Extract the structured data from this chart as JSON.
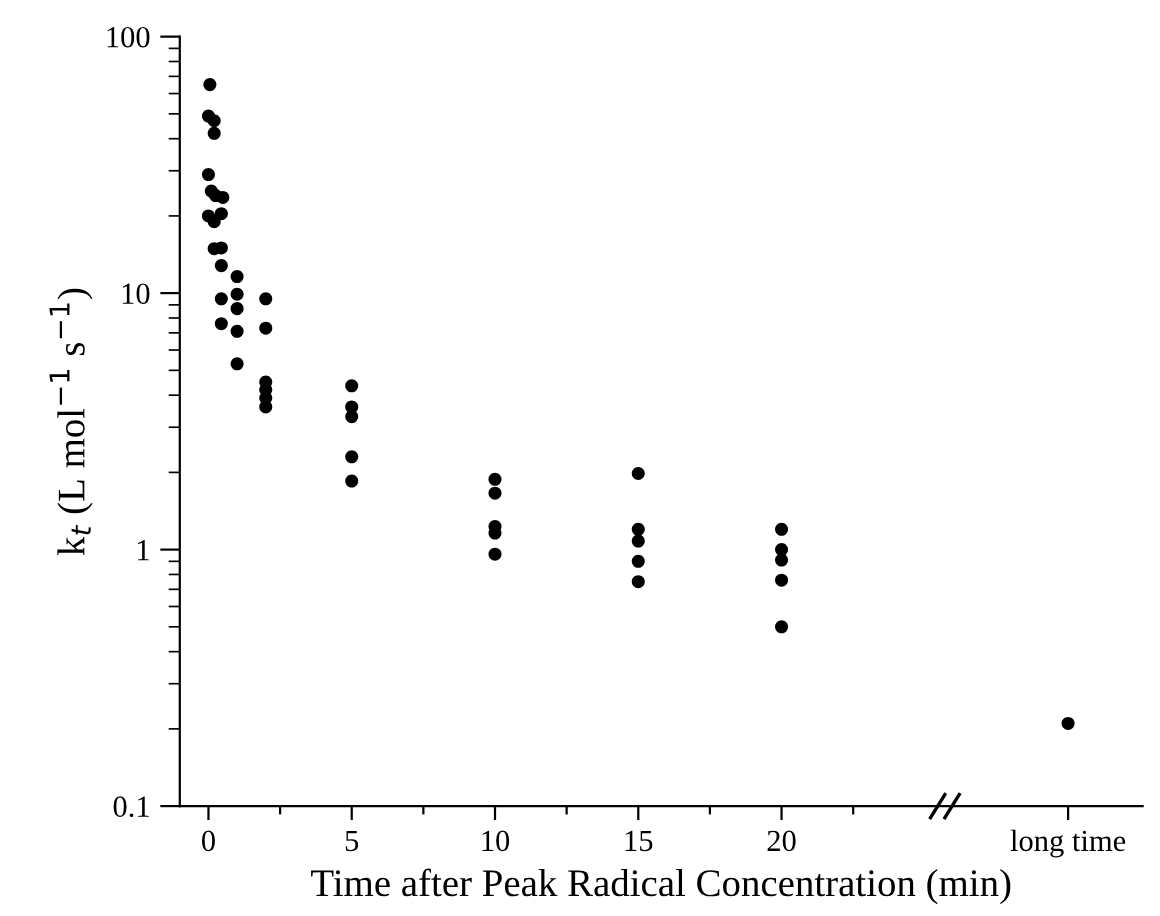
{
  "chart_data": {
    "type": "scatter",
    "xlabel": "Time after Peak Radical Concentration (min)",
    "ylabel": "k$_{t}$ (L mol$^{−1}$ s$^{−1}$)",
    "log": "y",
    "grid": false,
    "legend": false,
    "marker": "circle",
    "xlim": [
      -1,
      32.6
    ],
    "ylim": [
      0.1,
      100
    ],
    "xticks": [
      0,
      {
        "value": 2.5,
        "label": null
      },
      5,
      {
        "value": 7.5,
        "label": null
      },
      10,
      {
        "value": 12.5,
        "label": null
      },
      15,
      {
        "value": 17.5,
        "label": null
      },
      20,
      {
        "value": 22.5,
        "label": null
      },
      {
        "value": 30,
        "label": "long time"
      }
    ],
    "yticks": [
      0.1,
      1,
      10,
      100
    ],
    "series": [
      {
        "color": "#000000",
        "x": [
          0.05,
          0,
          0.2,
          0.2,
          0,
          0.1,
          0.25,
          0.5,
          0,
          0.2,
          0.45,
          0.2,
          0.45,
          0.45,
          1,
          1,
          0.45,
          1,
          0.45,
          1,
          1,
          2,
          2,
          2,
          2,
          2,
          2,
          5,
          5,
          5,
          5,
          5,
          10,
          10,
          10,
          10,
          10,
          15,
          15,
          15,
          15,
          15,
          20,
          20,
          20,
          20,
          20,
          30
        ],
        "values": [
          65,
          49,
          47,
          42,
          29,
          25,
          24,
          23.6,
          20,
          19,
          20.4,
          14.9,
          15,
          12.8,
          11.6,
          9.9,
          9.5,
          8.7,
          7.6,
          7.1,
          5.3,
          9.5,
          7.3,
          4.5,
          4.2,
          3.9,
          3.6,
          4.35,
          3.6,
          3.3,
          2.3,
          1.85,
          1.88,
          1.66,
          1.23,
          1.16,
          0.96,
          1.98,
          1.2,
          1.08,
          0.9,
          0.75,
          1.2,
          1.0,
          0.91,
          0.76,
          0.5,
          0.21
        ]
      }
    ]
  }
}
